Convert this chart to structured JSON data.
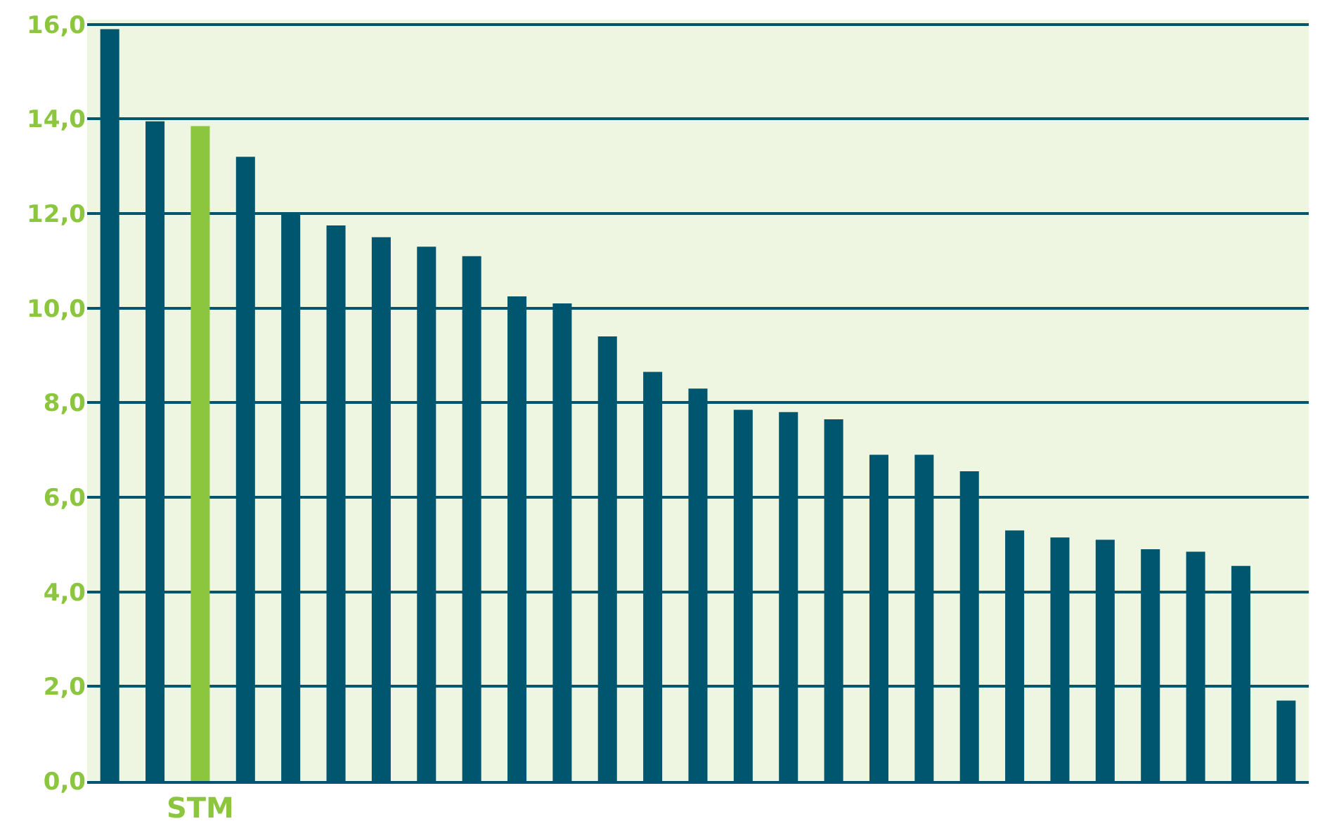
{
  "chart_data": {
    "type": "bar",
    "categories": [
      null,
      null,
      "STM",
      null,
      null,
      null,
      null,
      null,
      null,
      null,
      null,
      null,
      null,
      null,
      null,
      null,
      null,
      null,
      null,
      null,
      null,
      null,
      null,
      null,
      null,
      null,
      null
    ],
    "values": [
      15.9,
      13.95,
      13.85,
      13.2,
      12.0,
      11.75,
      11.5,
      11.3,
      11.1,
      10.25,
      10.1,
      9.4,
      8.65,
      8.3,
      7.85,
      7.8,
      7.65,
      6.9,
      6.9,
      6.55,
      5.3,
      5.15,
      5.1,
      4.9,
      4.85,
      4.55,
      1.7
    ],
    "colors": [
      "#00566f",
      "#00566f",
      "#8cc63f",
      "#00566f",
      "#00566f",
      "#00566f",
      "#00566f",
      "#00566f",
      "#00566f",
      "#00566f",
      "#00566f",
      "#00566f",
      "#00566f",
      "#00566f",
      "#00566f",
      "#00566f",
      "#00566f",
      "#00566f",
      "#00566f",
      "#00566f",
      "#00566f",
      "#00566f",
      "#00566f",
      "#00566f",
      "#00566f",
      "#00566f",
      "#00566f"
    ],
    "ylim": [
      0,
      16.1
    ],
    "yticks": [
      {
        "value": 0,
        "label": "0,0"
      },
      {
        "value": 2,
        "label": "2,0"
      },
      {
        "value": 4,
        "label": "4,0"
      },
      {
        "value": 6,
        "label": "6,0"
      },
      {
        "value": 8,
        "label": "8,0"
      },
      {
        "value": 10,
        "label": "10,0"
      },
      {
        "value": 12,
        "label": "12,0"
      },
      {
        "value": 14,
        "label": "14,0"
      },
      {
        "value": 16,
        "label": "16,0"
      }
    ],
    "grid": "y"
  }
}
